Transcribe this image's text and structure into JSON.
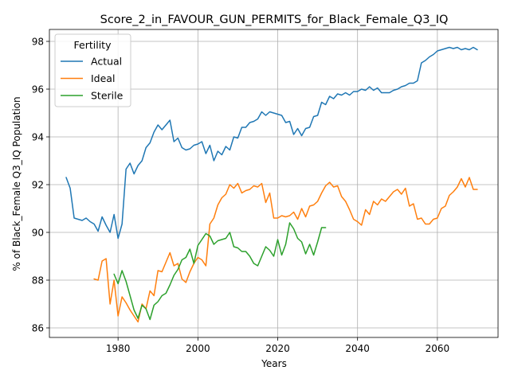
{
  "chart_data": {
    "type": "line",
    "title": "Score_2_in_FAVOUR_GUN_PERMITS_for_Black_Female_Q3_IQ",
    "xlabel": "Years",
    "ylabel": "% of Black_Female Q3_IQ Population",
    "xlim": [
      1962.8,
      2075.2
    ],
    "ylim": [
      85.6,
      98.5
    ],
    "xticks": [
      1980,
      2000,
      2020,
      2040,
      2060
    ],
    "yticks": [
      86,
      88,
      90,
      92,
      94,
      96,
      98
    ],
    "grid": true,
    "legend": {
      "title": "Fertility",
      "placement": "top-left"
    },
    "series": [
      {
        "name": "Actual",
        "color": "#1f77b4",
        "x": [
          1967,
          1968,
          1969,
          1970,
          1971,
          1972,
          1973,
          1974,
          1975,
          1976,
          1977,
          1978,
          1979,
          1980,
          1981,
          1982,
          1983,
          1984,
          1985,
          1986,
          1987,
          1988,
          1989,
          1990,
          1991,
          1992,
          1993,
          1994,
          1995,
          1996,
          1997,
          1998,
          1999,
          2000,
          2001,
          2002,
          2003,
          2004,
          2005,
          2006,
          2007,
          2008,
          2009,
          2010,
          2011,
          2012,
          2013,
          2014,
          2015,
          2016,
          2017,
          2018,
          2019,
          2020,
          2021,
          2022,
          2023,
          2024,
          2025,
          2026,
          2027,
          2028,
          2029,
          2030,
          2031,
          2032,
          2033,
          2034,
          2035,
          2036,
          2037,
          2038,
          2039,
          2040,
          2041,
          2042,
          2043,
          2044,
          2045,
          2046,
          2047,
          2048,
          2049,
          2050,
          2051,
          2052,
          2053,
          2054,
          2055,
          2056,
          2057,
          2058,
          2059,
          2060,
          2061,
          2062,
          2063,
          2064,
          2065,
          2066,
          2067,
          2068,
          2069,
          2070
        ],
        "values": [
          92.3,
          91.85,
          90.6,
          90.55,
          90.5,
          90.6,
          90.45,
          90.35,
          90.05,
          90.65,
          90.3,
          90.0,
          90.75,
          89.75,
          90.35,
          92.65,
          92.9,
          92.45,
          92.8,
          93.0,
          93.55,
          93.75,
          94.2,
          94.5,
          94.3,
          94.5,
          94.7,
          93.8,
          93.95,
          93.55,
          93.45,
          93.5,
          93.65,
          93.7,
          93.8,
          93.3,
          93.65,
          93.0,
          93.4,
          93.25,
          93.6,
          93.45,
          94.0,
          93.95,
          94.4,
          94.4,
          94.6,
          94.65,
          94.75,
          95.05,
          94.9,
          95.05,
          95.0,
          94.95,
          94.9,
          94.6,
          94.65,
          94.1,
          94.35,
          94.05,
          94.35,
          94.4,
          94.85,
          94.9,
          95.45,
          95.35,
          95.7,
          95.6,
          95.8,
          95.75,
          95.85,
          95.75,
          95.9,
          95.9,
          96.0,
          95.95,
          96.1,
          95.95,
          96.05,
          95.85,
          95.85,
          95.85,
          95.95,
          96.0,
          96.1,
          96.15,
          96.25,
          96.25,
          96.35,
          97.1,
          97.2,
          97.35,
          97.45,
          97.6,
          97.65,
          97.7,
          97.75,
          97.7,
          97.75,
          97.65,
          97.7,
          97.65,
          97.75,
          97.65
        ]
      },
      {
        "name": "Ideal",
        "color": "#ff7f0e",
        "x": [
          1974,
          1975,
          1976,
          1977,
          1978,
          1979,
          1980,
          1981,
          1982,
          1983,
          1984,
          1985,
          1986,
          1987,
          1988,
          1989,
          1990,
          1991,
          1992,
          1993,
          1994,
          1995,
          1996,
          1997,
          1998,
          1999,
          2000,
          2001,
          2002,
          2003,
          2004,
          2005,
          2006,
          2007,
          2008,
          2009,
          2010,
          2011,
          2012,
          2013,
          2014,
          2015,
          2016,
          2017,
          2018,
          2019,
          2020,
          2021,
          2022,
          2023,
          2024,
          2025,
          2026,
          2027,
          2028,
          2029,
          2030,
          2031,
          2032,
          2033,
          2034,
          2035,
          2036,
          2037,
          2038,
          2039,
          2040,
          2041,
          2042,
          2043,
          2044,
          2045,
          2046,
          2047,
          2048,
          2049,
          2050,
          2051,
          2052,
          2053,
          2054,
          2055,
          2056,
          2057,
          2058,
          2059,
          2060,
          2061,
          2062,
          2063,
          2064,
          2065,
          2066,
          2067,
          2068,
          2069,
          2070
        ],
        "values": [
          88.05,
          88.0,
          88.8,
          88.9,
          87.0,
          88.0,
          86.5,
          87.3,
          87.05,
          86.75,
          86.5,
          86.25,
          87.0,
          86.8,
          87.55,
          87.35,
          88.4,
          88.35,
          88.75,
          89.15,
          88.6,
          88.7,
          88.05,
          87.9,
          88.35,
          88.7,
          88.95,
          88.85,
          88.6,
          90.35,
          90.6,
          91.15,
          91.45,
          91.6,
          92.0,
          91.85,
          92.05,
          91.65,
          91.75,
          91.8,
          91.95,
          91.9,
          92.05,
          91.25,
          91.65,
          90.6,
          90.6,
          90.7,
          90.65,
          90.7,
          90.85,
          90.55,
          91.0,
          90.65,
          91.1,
          91.15,
          91.3,
          91.65,
          91.95,
          92.1,
          91.9,
          91.95,
          91.5,
          91.3,
          90.95,
          90.55,
          90.45,
          90.3,
          90.95,
          90.75,
          91.3,
          91.15,
          91.4,
          91.3,
          91.5,
          91.7,
          91.8,
          91.6,
          91.85,
          91.1,
          91.2,
          90.55,
          90.6,
          90.35,
          90.35,
          90.55,
          90.6,
          91.0,
          91.1,
          91.55,
          91.7,
          91.9,
          92.25,
          91.9,
          92.3,
          91.8,
          91.8
        ]
      },
      {
        "name": "Sterile",
        "color": "#2ca02c",
        "x": [
          1979,
          1980,
          1981,
          1982,
          1983,
          1984,
          1985,
          1986,
          1987,
          1988,
          1989,
          1990,
          1991,
          1992,
          1993,
          1994,
          1995,
          1996,
          1997,
          1998,
          1999,
          2000,
          2001,
          2002,
          2003,
          2004,
          2005,
          2006,
          2007,
          2008,
          2009,
          2010,
          2011,
          2012,
          2013,
          2014,
          2015,
          2016,
          2017,
          2018,
          2019,
          2020,
          2021,
          2022,
          2023,
          2024,
          2025,
          2026,
          2027,
          2028,
          2029,
          2030,
          2031,
          2032
        ],
        "values": [
          88.25,
          87.85,
          88.4,
          87.95,
          87.35,
          86.75,
          86.4,
          86.95,
          86.8,
          86.35,
          86.95,
          87.1,
          87.35,
          87.45,
          87.8,
          88.2,
          88.45,
          88.85,
          88.95,
          89.3,
          88.7,
          89.45,
          89.7,
          89.95,
          89.85,
          89.5,
          89.65,
          89.7,
          89.75,
          90.0,
          89.4,
          89.35,
          89.2,
          89.2,
          89.0,
          88.7,
          88.6,
          89.0,
          89.4,
          89.25,
          89.0,
          89.7,
          89.05,
          89.5,
          90.4,
          90.15,
          89.75,
          89.6,
          89.1,
          89.5,
          89.05,
          89.6,
          90.2,
          90.2
        ]
      }
    ]
  }
}
